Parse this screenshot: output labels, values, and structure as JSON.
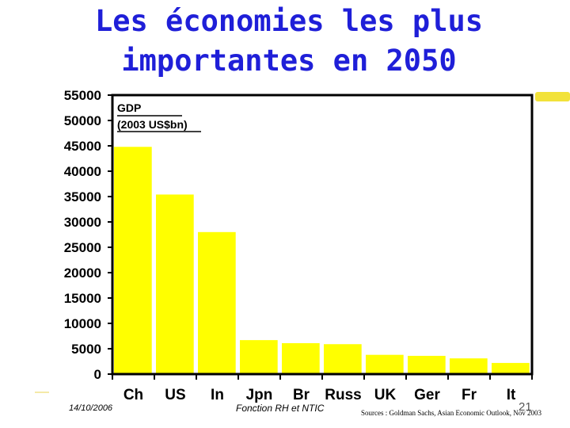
{
  "slide": {
    "title_line1": "Les économies les plus",
    "title_line2": "importantes en 2050",
    "date": "14/10/2006",
    "footer_center": "Fonction RH et NTIC",
    "page_number": "21",
    "sources": "Sources : Goldman Sachs, Asian Economic Outlook, Nov 2003"
  },
  "colors": {
    "title": "#1f1fd8",
    "bar": "#ffff00",
    "axis": "#000000"
  },
  "chart_data": {
    "type": "bar",
    "title": "",
    "legend_title_line1": "GDP",
    "legend_title_line2": "(2003 US$bn)",
    "categories": [
      "Ch",
      "US",
      "In",
      "Jpn",
      "Br",
      "Russ",
      "UK",
      "Ger",
      "Fr",
      "It"
    ],
    "values": [
      44800,
      35400,
      28000,
      6700,
      6100,
      5900,
      3800,
      3600,
      3100,
      2200
    ],
    "xlabel": "",
    "ylabel": "",
    "ylim": [
      0,
      55000
    ],
    "yticks": [
      "55000",
      "50000",
      "45000",
      "40000",
      "35000",
      "30000",
      "25000",
      "20000",
      "15000",
      "10000",
      "5000",
      "0"
    ],
    "grid": false,
    "legend": "top-left"
  }
}
